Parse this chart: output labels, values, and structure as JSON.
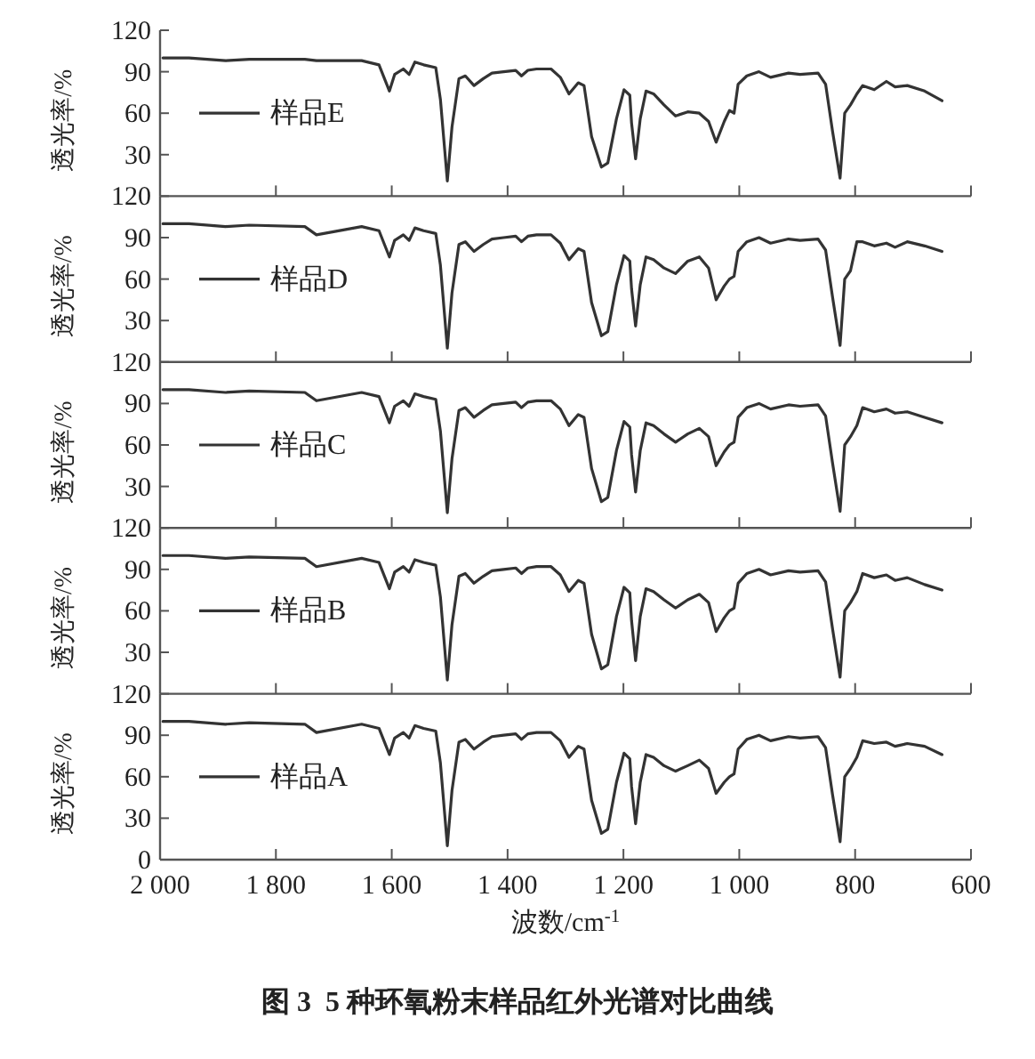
{
  "chart_data": [
    {
      "type": "line",
      "ylabel": "透光率/%",
      "xlim": [
        2000,
        600
      ],
      "ylim": [
        0,
        120
      ],
      "xticks": [
        {
          "value": 2000,
          "label": null
        },
        {
          "value": 1800,
          "label": null
        },
        {
          "value": 1600,
          "label": null
        },
        {
          "value": 1400,
          "label": null
        },
        {
          "value": 1200,
          "label": null
        },
        {
          "value": 1000,
          "label": null
        },
        {
          "value": 800,
          "label": null
        },
        {
          "value": 600,
          "label": null
        }
      ],
      "yticks": [
        30,
        60,
        90,
        120
      ],
      "tick_labels": "y",
      "legend": "left",
      "x": [
        1995,
        1950,
        1887,
        1846,
        1750,
        1730,
        1652,
        1622,
        1604,
        1595,
        1580,
        1570,
        1560,
        1545,
        1524,
        1516,
        1504,
        1496,
        1484,
        1473,
        1458,
        1442,
        1427,
        1407,
        1386,
        1376,
        1365,
        1350,
        1325,
        1309,
        1294,
        1278,
        1268,
        1255,
        1238,
        1227,
        1212,
        1199,
        1189,
        1186,
        1179,
        1171,
        1161,
        1148,
        1130,
        1110,
        1089,
        1069,
        1053,
        1040,
        1026,
        1017,
        1009,
        1002,
        987,
        966,
        946,
        915,
        895,
        864,
        851,
        839,
        826,
        818,
        808,
        797,
        787,
        767,
        746,
        731,
        710,
        680,
        650
      ],
      "series": [
        {
          "name": "样品E",
          "color": "#333333",
          "values": [
            100,
            100,
            98,
            99,
            99,
            98,
            98,
            95,
            76,
            88,
            92,
            88,
            97,
            95,
            93,
            70,
            11,
            50,
            85,
            87,
            80,
            85,
            89,
            90,
            91,
            87,
            91,
            92,
            92,
            86,
            74,
            82,
            80,
            43,
            21,
            24,
            56,
            77,
            73,
            53,
            27,
            56,
            76,
            74,
            66,
            58,
            61,
            60,
            54,
            39,
            54,
            62,
            60,
            81,
            87,
            90,
            86,
            89,
            88,
            89,
            81,
            47,
            13,
            60,
            66,
            74,
            80,
            77,
            83,
            79,
            80,
            76,
            69
          ]
        }
      ]
    },
    {
      "type": "line",
      "ylabel": "透光率/%",
      "xlim": [
        2000,
        600
      ],
      "ylim": [
        0,
        120
      ],
      "xticks": [
        {
          "value": 2000,
          "label": null
        },
        {
          "value": 1800,
          "label": null
        },
        {
          "value": 1600,
          "label": null
        },
        {
          "value": 1400,
          "label": null
        },
        {
          "value": 1200,
          "label": null
        },
        {
          "value": 1000,
          "label": null
        },
        {
          "value": 800,
          "label": null
        },
        {
          "value": 600,
          "label": null
        }
      ],
      "yticks": [
        30,
        60,
        90,
        120
      ],
      "tick_labels": "y",
      "legend": "left",
      "x": [
        1995,
        1950,
        1887,
        1846,
        1750,
        1730,
        1652,
        1622,
        1604,
        1595,
        1580,
        1570,
        1560,
        1545,
        1524,
        1516,
        1504,
        1496,
        1484,
        1473,
        1458,
        1442,
        1427,
        1407,
        1386,
        1376,
        1365,
        1350,
        1325,
        1309,
        1294,
        1278,
        1268,
        1255,
        1238,
        1227,
        1212,
        1199,
        1189,
        1186,
        1179,
        1171,
        1161,
        1148,
        1130,
        1110,
        1089,
        1069,
        1053,
        1040,
        1026,
        1017,
        1009,
        1002,
        987,
        966,
        946,
        915,
        895,
        864,
        851,
        839,
        826,
        818,
        808,
        797,
        787,
        767,
        746,
        731,
        710,
        680,
        650
      ],
      "series": [
        {
          "name": "样品D",
          "color": "#333333",
          "values": [
            100,
            100,
            98,
            99,
            98,
            92,
            98,
            95,
            76,
            88,
            92,
            88,
            97,
            95,
            93,
            70,
            10,
            50,
            85,
            87,
            80,
            85,
            89,
            90,
            91,
            87,
            91,
            92,
            92,
            86,
            74,
            82,
            80,
            43,
            19,
            22,
            56,
            77,
            73,
            53,
            26,
            56,
            76,
            74,
            68,
            64,
            73,
            76,
            68,
            45,
            55,
            60,
            62,
            80,
            87,
            90,
            86,
            89,
            88,
            89,
            81,
            47,
            12,
            60,
            66,
            87,
            87,
            84,
            86,
            83,
            87,
            84,
            80
          ]
        }
      ]
    },
    {
      "type": "line",
      "ylabel": "透光率/%",
      "xlim": [
        2000,
        600
      ],
      "ylim": [
        0,
        120
      ],
      "xticks": [
        {
          "value": 2000,
          "label": null
        },
        {
          "value": 1800,
          "label": null
        },
        {
          "value": 1600,
          "label": null
        },
        {
          "value": 1400,
          "label": null
        },
        {
          "value": 1200,
          "label": null
        },
        {
          "value": 1000,
          "label": null
        },
        {
          "value": 800,
          "label": null
        },
        {
          "value": 600,
          "label": null
        }
      ],
      "yticks": [
        30,
        60,
        90,
        120
      ],
      "tick_labels": "y",
      "legend": "left",
      "x": [
        1995,
        1950,
        1887,
        1846,
        1750,
        1730,
        1652,
        1622,
        1604,
        1595,
        1580,
        1570,
        1560,
        1545,
        1524,
        1516,
        1504,
        1496,
        1484,
        1473,
        1458,
        1442,
        1427,
        1407,
        1386,
        1376,
        1365,
        1350,
        1325,
        1309,
        1294,
        1278,
        1268,
        1255,
        1238,
        1227,
        1212,
        1199,
        1189,
        1186,
        1179,
        1171,
        1161,
        1148,
        1130,
        1110,
        1089,
        1069,
        1053,
        1040,
        1026,
        1017,
        1009,
        1002,
        987,
        966,
        946,
        915,
        895,
        864,
        851,
        839,
        826,
        818,
        808,
        797,
        787,
        767,
        746,
        731,
        710,
        680,
        650
      ],
      "series": [
        {
          "name": "样品C",
          "color": "#333333",
          "values": [
            100,
            100,
            98,
            99,
            98,
            92,
            98,
            95,
            76,
            88,
            92,
            88,
            97,
            95,
            93,
            70,
            11,
            50,
            85,
            87,
            80,
            85,
            89,
            90,
            91,
            87,
            91,
            92,
            92,
            86,
            74,
            82,
            80,
            43,
            19,
            22,
            56,
            77,
            73,
            53,
            26,
            56,
            76,
            74,
            68,
            62,
            68,
            72,
            66,
            45,
            55,
            60,
            62,
            80,
            87,
            90,
            86,
            89,
            88,
            89,
            81,
            47,
            12,
            60,
            66,
            74,
            87,
            84,
            86,
            83,
            84,
            80,
            76
          ]
        }
      ]
    },
    {
      "type": "line",
      "ylabel": "透光率/%",
      "xlim": [
        2000,
        600
      ],
      "ylim": [
        0,
        120
      ],
      "xticks": [
        {
          "value": 2000,
          "label": null
        },
        {
          "value": 1800,
          "label": null
        },
        {
          "value": 1600,
          "label": null
        },
        {
          "value": 1400,
          "label": null
        },
        {
          "value": 1200,
          "label": null
        },
        {
          "value": 1000,
          "label": null
        },
        {
          "value": 800,
          "label": null
        },
        {
          "value": 600,
          "label": null
        }
      ],
      "yticks": [
        30,
        60,
        90,
        120
      ],
      "tick_labels": "y",
      "legend": "left",
      "x": [
        1995,
        1950,
        1887,
        1846,
        1750,
        1730,
        1652,
        1622,
        1604,
        1595,
        1580,
        1570,
        1560,
        1545,
        1524,
        1516,
        1504,
        1496,
        1484,
        1473,
        1458,
        1442,
        1427,
        1407,
        1386,
        1376,
        1365,
        1350,
        1325,
        1309,
        1294,
        1278,
        1268,
        1255,
        1238,
        1227,
        1212,
        1199,
        1189,
        1186,
        1179,
        1171,
        1161,
        1148,
        1130,
        1110,
        1089,
        1069,
        1053,
        1040,
        1026,
        1017,
        1009,
        1002,
        987,
        966,
        946,
        915,
        895,
        864,
        851,
        839,
        826,
        818,
        808,
        797,
        787,
        767,
        746,
        731,
        710,
        680,
        650
      ],
      "series": [
        {
          "name": "样品B",
          "color": "#333333",
          "values": [
            100,
            100,
            98,
            99,
            98,
            92,
            98,
            95,
            76,
            88,
            92,
            88,
            97,
            95,
            93,
            70,
            10,
            50,
            85,
            87,
            80,
            85,
            89,
            90,
            91,
            87,
            91,
            92,
            92,
            86,
            74,
            82,
            80,
            43,
            18,
            21,
            56,
            77,
            73,
            53,
            24,
            56,
            76,
            74,
            68,
            62,
            68,
            72,
            66,
            45,
            55,
            60,
            62,
            80,
            87,
            90,
            86,
            89,
            88,
            89,
            81,
            47,
            12,
            60,
            66,
            74,
            87,
            84,
            86,
            82,
            84,
            79,
            75
          ]
        }
      ]
    },
    {
      "type": "line",
      "ylabel": "透光率/%",
      "xlabel": "波数/cm$^{-1}$",
      "xlim": [
        2000,
        600
      ],
      "ylim": [
        0,
        120
      ],
      "xticks": [
        {
          "value": 2000,
          "label": "2 000"
        },
        {
          "value": 1800,
          "label": "1 800"
        },
        {
          "value": 1600,
          "label": "1 600"
        },
        {
          "value": 1400,
          "label": "1 400"
        },
        {
          "value": 1200,
          "label": "1 200"
        },
        {
          "value": 1000,
          "label": "1 000"
        },
        800,
        600
      ],
      "yticks": [
        0,
        30,
        60,
        90,
        120
      ],
      "legend": "left",
      "annotations": [
        "图 3  5 种环氧粉末样品红外光谱对比曲线"
      ],
      "x": [
        1995,
        1950,
        1887,
        1846,
        1750,
        1730,
        1652,
        1622,
        1604,
        1595,
        1580,
        1570,
        1560,
        1545,
        1524,
        1516,
        1504,
        1496,
        1484,
        1473,
        1458,
        1442,
        1427,
        1407,
        1386,
        1376,
        1365,
        1350,
        1325,
        1309,
        1294,
        1278,
        1268,
        1255,
        1238,
        1227,
        1212,
        1199,
        1189,
        1186,
        1179,
        1171,
        1161,
        1148,
        1130,
        1110,
        1089,
        1069,
        1053,
        1040,
        1026,
        1017,
        1009,
        1002,
        987,
        966,
        946,
        915,
        895,
        864,
        851,
        839,
        826,
        818,
        808,
        797,
        787,
        767,
        746,
        731,
        710,
        680,
        650
      ],
      "series": [
        {
          "name": "样品A",
          "color": "#333333",
          "values": [
            100,
            100,
            98,
            99,
            98,
            92,
            98,
            95,
            76,
            88,
            92,
            88,
            97,
            95,
            93,
            70,
            10,
            50,
            85,
            87,
            80,
            85,
            89,
            90,
            91,
            87,
            91,
            92,
            92,
            86,
            74,
            82,
            80,
            43,
            19,
            22,
            56,
            77,
            73,
            53,
            26,
            56,
            76,
            74,
            68,
            64,
            68,
            72,
            66,
            48,
            56,
            60,
            62,
            80,
            87,
            90,
            86,
            89,
            88,
            89,
            81,
            47,
            13,
            60,
            66,
            74,
            86,
            84,
            85,
            82,
            84,
            82,
            76
          ]
        }
      ]
    }
  ]
}
